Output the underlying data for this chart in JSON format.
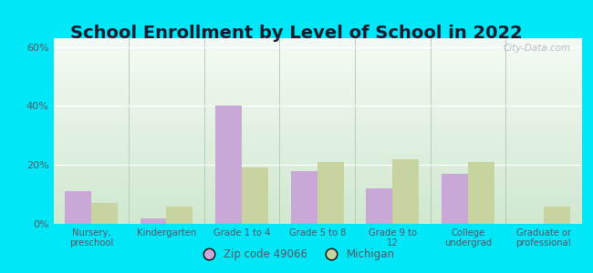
{
  "title": "School Enrollment by Level of School in 2022",
  "categories": [
    "Nursery,\npreschool",
    "Kindergarten",
    "Grade 1 to 4",
    "Grade 5 to 8",
    "Grade 9 to\n12",
    "College\nundergrad",
    "Graduate or\nprofessional"
  ],
  "zip_values": [
    11,
    2,
    40,
    18,
    12,
    17,
    0
  ],
  "mi_values": [
    7,
    6,
    19,
    21,
    22,
    21,
    6
  ],
  "zip_color": "#c9a8d8",
  "mi_color": "#c8d4a0",
  "background_outer": "#00e8f8",
  "background_inner_top": "#f5fbf5",
  "background_inner_bottom": "#d0e8d0",
  "ylim": [
    0,
    63
  ],
  "yticks": [
    0,
    20,
    40,
    60
  ],
  "ytick_labels": [
    "0%",
    "20%",
    "40%",
    "60%"
  ],
  "title_fontsize": 14,
  "title_color": "#1a1a2e",
  "tick_color": "#555566",
  "legend_label_zip": "Zip code 49066",
  "legend_label_mi": "Michigan",
  "watermark": "City-Data.com",
  "bar_width": 0.35
}
